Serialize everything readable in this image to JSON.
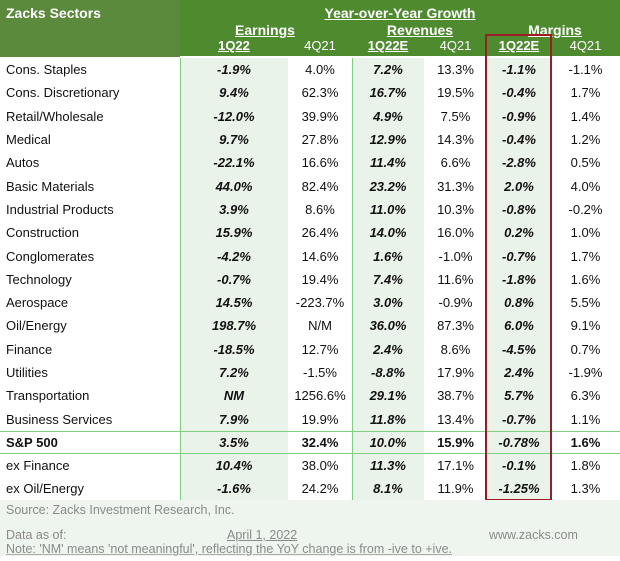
{
  "header": {
    "sectors_label": "Zacks Sectors",
    "group_title": "Year-over-Year Growth",
    "groups": [
      "Earnings",
      "Revenues",
      "Margins"
    ],
    "columns": [
      "1Q22",
      "4Q21",
      "1Q22E",
      "4Q21",
      "1Q22E",
      "4Q21"
    ]
  },
  "rows": [
    {
      "sector": "Cons. Staples",
      "v": [
        "-1.9%",
        "4.0%",
        "7.2%",
        "13.3%",
        "-1.1%",
        "-1.1%"
      ]
    },
    {
      "sector": "Cons. Discretionary",
      "v": [
        "9.4%",
        "62.3%",
        "16.7%",
        "19.5%",
        "-0.4%",
        "1.7%"
      ]
    },
    {
      "sector": "Retail/Wholesale",
      "v": [
        "-12.0%",
        "39.9%",
        "4.9%",
        "7.5%",
        "-0.9%",
        "1.4%"
      ]
    },
    {
      "sector": "Medical",
      "v": [
        "9.7%",
        "27.8%",
        "12.9%",
        "14.3%",
        "-0.4%",
        "1.2%"
      ]
    },
    {
      "sector": "Autos",
      "v": [
        "-22.1%",
        "16.6%",
        "11.4%",
        "6.6%",
        "-2.8%",
        "0.5%"
      ]
    },
    {
      "sector": "Basic Materials",
      "v": [
        "44.0%",
        "82.4%",
        "23.2%",
        "31.3%",
        "2.0%",
        "4.0%"
      ]
    },
    {
      "sector": "Industrial Products",
      "v": [
        "3.9%",
        "8.6%",
        "11.0%",
        "10.3%",
        "-0.8%",
        "-0.2%"
      ]
    },
    {
      "sector": "Construction",
      "v": [
        "15.9%",
        "26.4%",
        "14.0%",
        "16.0%",
        "0.2%",
        "1.0%"
      ]
    },
    {
      "sector": "Conglomerates",
      "v": [
        "-4.2%",
        "14.6%",
        "1.6%",
        "-1.0%",
        "-0.7%",
        "1.7%"
      ]
    },
    {
      "sector": "Technology",
      "v": [
        "-0.7%",
        "19.4%",
        "7.4%",
        "11.6%",
        "-1.8%",
        "1.6%"
      ]
    },
    {
      "sector": "Aerospace",
      "v": [
        "14.5%",
        "-223.7%",
        "3.0%",
        "-0.9%",
        "0.8%",
        "5.5%"
      ]
    },
    {
      "sector": "Oil/Energy",
      "v": [
        "198.7%",
        "N/M",
        "36.0%",
        "87.3%",
        "6.0%",
        "9.1%"
      ]
    },
    {
      "sector": "Finance",
      "v": [
        "-18.5%",
        "12.7%",
        "2.4%",
        "8.6%",
        "-4.5%",
        "0.7%"
      ]
    },
    {
      "sector": "Utilities",
      "v": [
        "7.2%",
        "-1.5%",
        "-8.8%",
        "17.9%",
        "2.4%",
        "-1.9%"
      ]
    },
    {
      "sector": "Transportation",
      "v": [
        "NM",
        "1256.6%",
        "29.1%",
        "38.7%",
        "5.7%",
        "6.3%"
      ]
    },
    {
      "sector": "Business Services",
      "v": [
        "7.9%",
        "19.9%",
        "11.8%",
        "13.4%",
        "-0.7%",
        "1.1%"
      ]
    },
    {
      "sector": "S&P 500",
      "v": [
        "3.5%",
        "32.4%",
        "10.0%",
        "15.9%",
        "-0.78%",
        "1.6%"
      ],
      "total": true
    },
    {
      "sector": "ex Finance",
      "v": [
        "10.4%",
        "38.0%",
        "11.3%",
        "17.1%",
        "-0.1%",
        "1.8%"
      ]
    },
    {
      "sector": "ex Oil/Energy",
      "v": [
        "-1.6%",
        "24.2%",
        "8.1%",
        "11.9%",
        "-1.25%",
        "1.3%"
      ]
    }
  ],
  "footer": {
    "source": "Source: Zacks Investment Research, Inc.",
    "data_as_of_label": "Data as of:",
    "date": "April 1, 2022",
    "website": "www.zacks.com",
    "note": "Note: 'NM' means 'not meaningful', reflecting the YoY change is from -ive to +ive."
  },
  "colors": {
    "header_green": "#4e8a2e",
    "highlight_box": "#9c1b24",
    "shade": "#eaf3ea"
  }
}
